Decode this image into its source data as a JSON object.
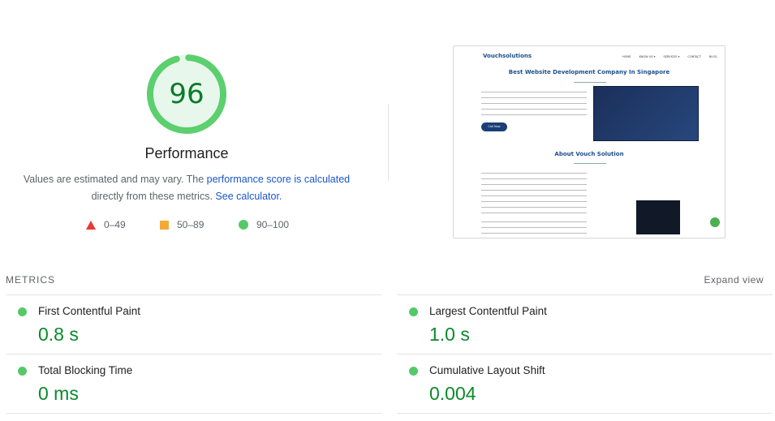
{
  "score": {
    "value": 96,
    "fraction": 0.96,
    "label": "Performance",
    "color": "#0cce6b"
  },
  "description": {
    "text1": "Values are estimated and may vary. The ",
    "link1": "performance score is calculated",
    "text2": "directly from these metrics. ",
    "link2": "See calculator."
  },
  "legend": [
    {
      "range": "0–49",
      "icon": "triangle-icon",
      "color": "#e53935"
    },
    {
      "range": "50–89",
      "icon": "square-icon",
      "color": "#f4a937"
    },
    {
      "range": "90–100",
      "icon": "circle-icon",
      "color": "#55c96a"
    }
  ],
  "screenshot": {
    "logo": "Vouchsolutions",
    "nav": [
      "HOME",
      "KNOW US ▾",
      "SERVICES ▾",
      "CONTACT",
      "BLOG"
    ],
    "heading1": "Best Website Development Company In Singapore",
    "cta": "Call Now",
    "heading2": "About Vouch Solution"
  },
  "metrics": {
    "title": "METRICS",
    "expand": "Expand view",
    "items": [
      {
        "label": "First Contentful Paint",
        "value": "0.8 s"
      },
      {
        "label": "Largest Contentful Paint",
        "value": "1.0 s"
      },
      {
        "label": "Total Blocking Time",
        "value": "0 ms"
      },
      {
        "label": "Cumulative Layout Shift",
        "value": "0.004"
      }
    ]
  }
}
